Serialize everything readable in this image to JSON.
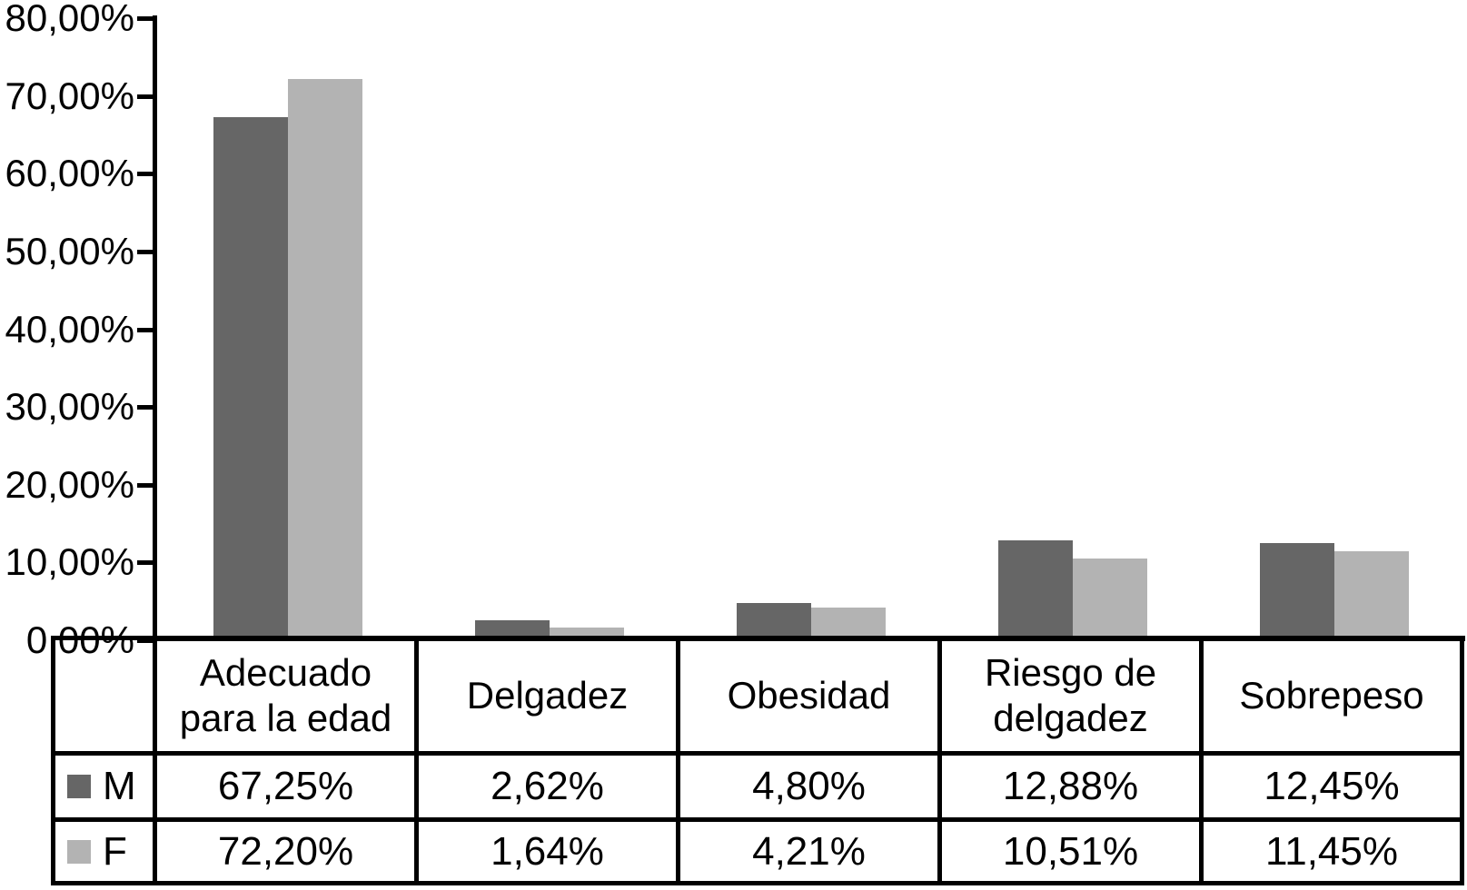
{
  "chart_data": {
    "type": "bar",
    "title": "",
    "xlabel": "",
    "ylabel": "",
    "categories": [
      "Adecuado para la edad",
      "Delgadez",
      "Obesidad",
      "Riesgo de delgadez",
      "Sobrepeso"
    ],
    "series": [
      {
        "name": "M",
        "color": "#666666",
        "values": [
          67.25,
          2.62,
          4.8,
          12.88,
          12.45
        ],
        "labels": [
          "67,25%",
          "2,62%",
          "4,80%",
          "12,88%",
          "12,45%"
        ]
      },
      {
        "name": "F",
        "color": "#b3b3b3",
        "values": [
          72.2,
          1.64,
          4.21,
          10.51,
          11.45
        ],
        "labels": [
          "72,20%",
          "1,64%",
          "4,21%",
          "10,51%",
          "11,45%"
        ]
      }
    ],
    "ylim": [
      0,
      80
    ],
    "ytick_step": 10,
    "ytick_labels": [
      "0,00%",
      "10,00%",
      "20,00%",
      "30,00%",
      "40,00%",
      "50,00%",
      "60,00%",
      "70,00%",
      "80,00%"
    ],
    "grid": false,
    "legend_position": "table-left",
    "axis_color": "#000000",
    "background_color": "#ffffff"
  }
}
